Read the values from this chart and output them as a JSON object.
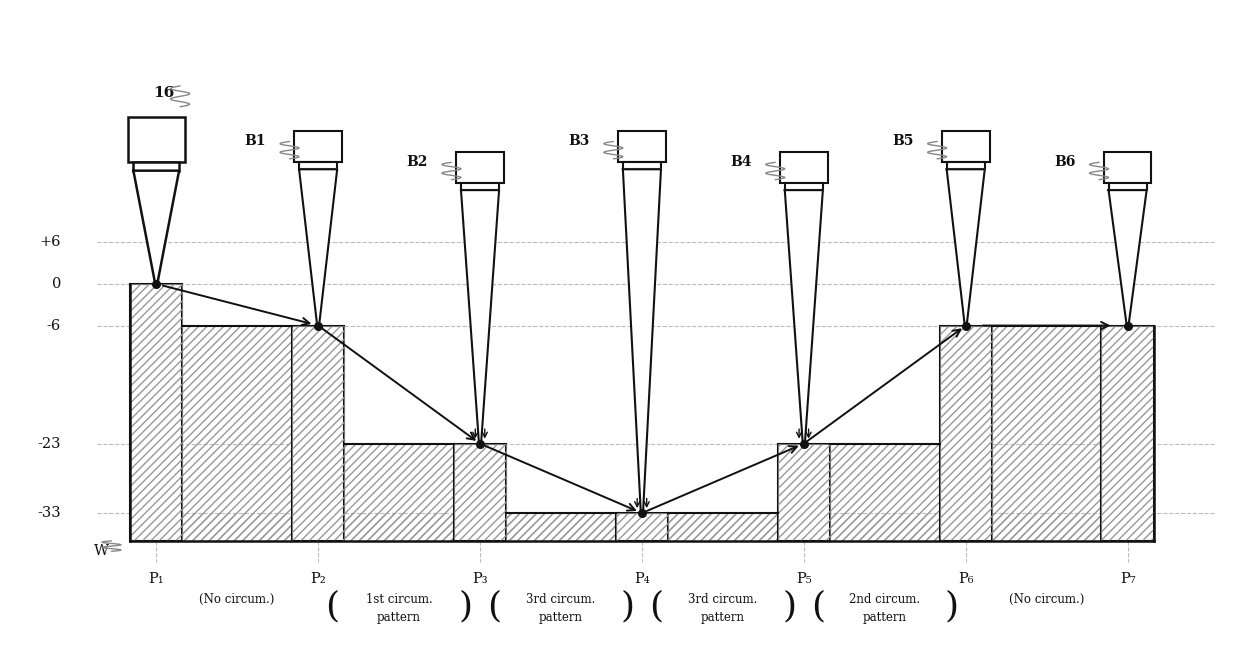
{
  "lc": "#111111",
  "dc": "#aaaaaa",
  "y_labels": [
    "+6",
    "0",
    "-6",
    "-23",
    "-33"
  ],
  "y_values": [
    6,
    0,
    -6,
    -23,
    -33
  ],
  "p_x": [
    1.55,
    3.25,
    4.95,
    6.65,
    8.35,
    10.05,
    11.75
  ],
  "p_labels": [
    "P₁",
    "P₂",
    "P₃",
    "P₄",
    "P₅",
    "P₆",
    "P₇"
  ],
  "probe_y": [
    0,
    -6,
    -23,
    -33,
    -23,
    -6,
    -6
  ],
  "b_labels": [
    "",
    "B1",
    "B2",
    "B3",
    "B4",
    "B5",
    "B6"
  ],
  "circum_labels": [
    "(No circum.)",
    "1st circum.\npattern",
    "3rd circum.\npattern",
    "3rd circum.\npattern",
    "2nd circum.\npattern",
    "(No circum.)"
  ],
  "circum_has_parens": [
    false,
    true,
    true,
    true,
    true,
    false
  ],
  "ref_label": "16",
  "w_label": "W",
  "xlim": [
    0.3,
    12.8
  ],
  "ylim": [
    -52,
    38
  ]
}
